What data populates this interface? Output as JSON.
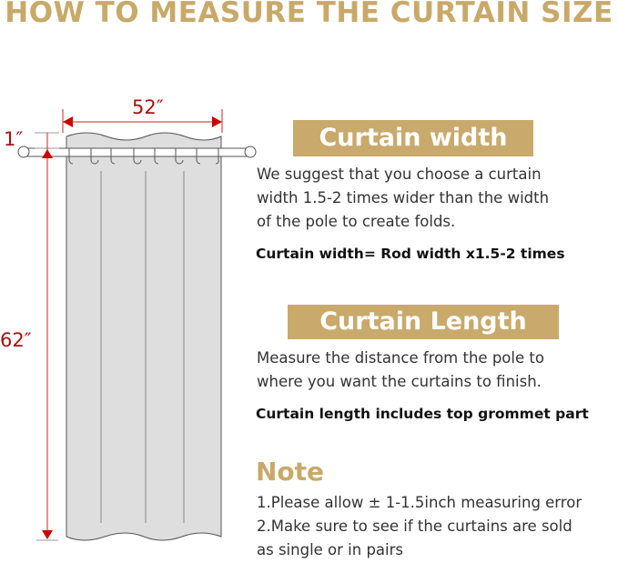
{
  "title": "HOW TO MEASURE THE CURTAIN SIZE",
  "diagram": {
    "width_label": "52″",
    "length_label": "62″",
    "top_label": "1″",
    "accent_color": "#c9aa6c",
    "dimension_color": "#c00000"
  },
  "width_section": {
    "heading": "Curtain width",
    "lines": [
      "We suggest that you choose a curtain",
      "width 1.5-2 times wider than the width",
      "of the pole to create folds."
    ],
    "formula": "Curtain width= Rod width x1.5-2 times"
  },
  "length_section": {
    "heading": "Curtain Length",
    "lines": [
      "Measure the distance from the pole to",
      "where you want the curtains to finish."
    ],
    "formula": "Curtain length includes top grommet part"
  },
  "note": {
    "heading": "Note",
    "lines": [
      "1.Please allow ± 1-1.5inch measuring error",
      "2.Make sure to see if the curtains are sold",
      "as single or in pairs"
    ]
  }
}
